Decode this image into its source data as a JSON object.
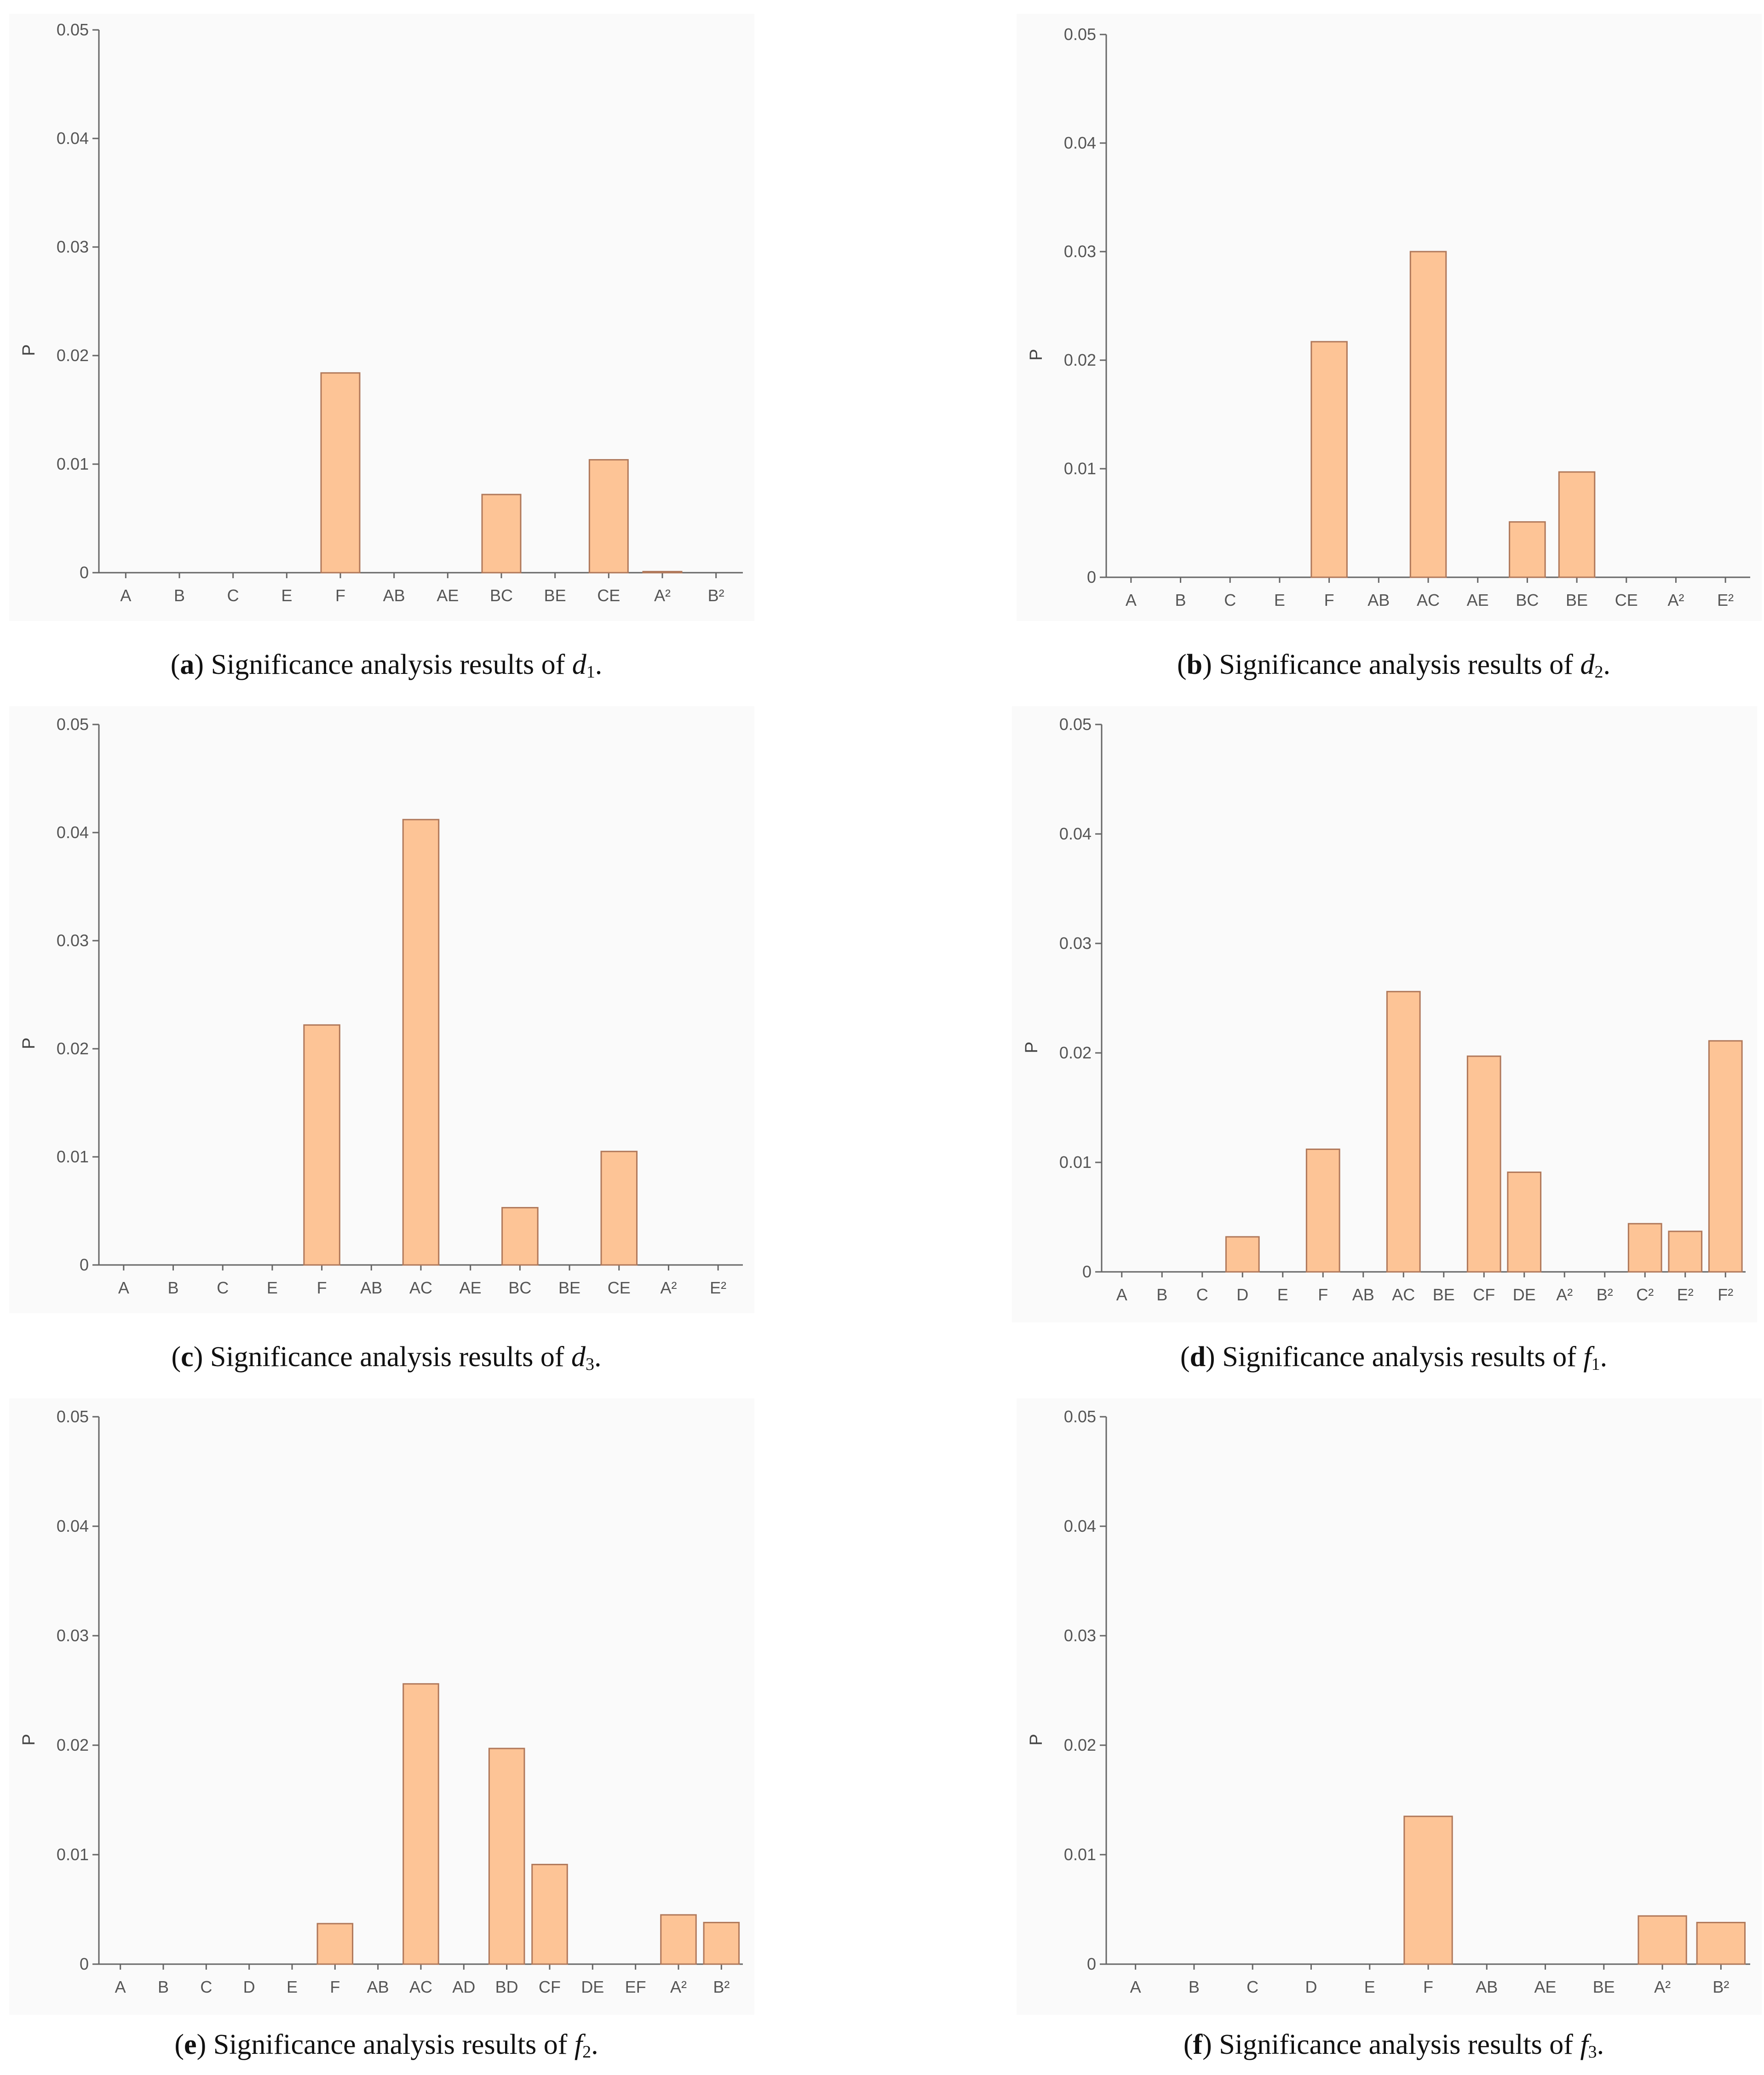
{
  "chart_data": [
    {
      "type": "bar",
      "panel": "a",
      "caption": {
        "letter": "a",
        "prefix": "Significance analysis results of ",
        "var": "d",
        "sub": "1",
        "suffix": "."
      },
      "ylabel": "P",
      "ylim": [
        0,
        0.05
      ],
      "yticks": [
        "0",
        "0.01",
        "0.02",
        "0.03",
        "0.04",
        "0.05"
      ],
      "categories": [
        "A",
        "B",
        "C",
        "E",
        "F",
        "AB",
        "AE",
        "BC",
        "BE",
        "CE",
        "A²",
        "B²"
      ],
      "values": [
        0,
        0,
        0,
        0,
        0.0184,
        0,
        0,
        0.0072,
        0,
        0.0104,
        0.0001,
        0
      ]
    },
    {
      "type": "bar",
      "panel": "b",
      "caption": {
        "letter": "b",
        "prefix": "Significance analysis results of ",
        "var": "d",
        "sub": "2",
        "suffix": "."
      },
      "ylabel": "P",
      "ylim": [
        0,
        0.05
      ],
      "yticks": [
        "0",
        "0.01",
        "0.02",
        "0.03",
        "0.04",
        "0.05"
      ],
      "categories": [
        "A",
        "B",
        "C",
        "E",
        "F",
        "AB",
        "AC",
        "AE",
        "BC",
        "BE",
        "CE",
        "A²",
        "E²"
      ],
      "values": [
        0,
        0,
        0,
        0,
        0.0217,
        0,
        0.03,
        0,
        0.0051,
        0.0097,
        0,
        0,
        0
      ]
    },
    {
      "type": "bar",
      "panel": "c",
      "caption": {
        "letter": "c",
        "prefix": "Significance analysis results of ",
        "var": "d",
        "sub": "3",
        "suffix": "."
      },
      "ylabel": "P",
      "ylim": [
        0,
        0.05
      ],
      "yticks": [
        "0",
        "0.01",
        "0.02",
        "0.03",
        "0.04",
        "0.05"
      ],
      "categories": [
        "A",
        "B",
        "C",
        "E",
        "F",
        "AB",
        "AC",
        "AE",
        "BC",
        "BE",
        "CE",
        "A²",
        "E²"
      ],
      "values": [
        0,
        0,
        0,
        0,
        0.0222,
        0,
        0.0412,
        0,
        0.0053,
        0,
        0.0105,
        0,
        0
      ]
    },
    {
      "type": "bar",
      "panel": "d",
      "caption": {
        "letter": "d",
        "prefix": "Significance analysis results of ",
        "var": "f",
        "sub": "1",
        "suffix": "."
      },
      "ylabel": "P",
      "ylim": [
        0,
        0.05
      ],
      "yticks": [
        "0",
        "0.01",
        "0.02",
        "0.03",
        "0.04",
        "0.05"
      ],
      "categories": [
        "A",
        "B",
        "C",
        "D",
        "E",
        "F",
        "AB",
        "AC",
        "BE",
        "CF",
        "DE",
        "A²",
        "B²",
        "C²",
        "E²",
        "F²"
      ],
      "values": [
        0,
        0,
        0,
        0.0032,
        0,
        0.0112,
        0,
        0.0256,
        0,
        0.0197,
        0.0091,
        0,
        0,
        0.0044,
        0.0037,
        0.0211
      ]
    },
    {
      "type": "bar",
      "panel": "e",
      "caption": {
        "letter": "e",
        "prefix": "Significance analysis results of ",
        "var": "f",
        "sub": "2",
        "suffix": "."
      },
      "ylabel": "P",
      "ylim": [
        0,
        0.05
      ],
      "yticks": [
        "0",
        "0.01",
        "0.02",
        "0.03",
        "0.04",
        "0.05"
      ],
      "categories": [
        "A",
        "B",
        "C",
        "D",
        "E",
        "F",
        "AB",
        "AC",
        "AD",
        "BD",
        "CF",
        "DE",
        "EF",
        "A²",
        "B²"
      ],
      "values": [
        0,
        0,
        0,
        0,
        0,
        0.0037,
        0,
        0.0256,
        0,
        0.0197,
        0.0091,
        0,
        0,
        0.0045,
        0.0038
      ]
    },
    {
      "type": "bar",
      "panel": "f",
      "caption": {
        "letter": "f",
        "prefix": "Significance analysis results of ",
        "var": "f",
        "sub": "3",
        "suffix": "."
      },
      "ylabel": "P",
      "ylim": [
        0,
        0.05
      ],
      "yticks": [
        "0",
        "0.01",
        "0.02",
        "0.03",
        "0.04",
        "0.05"
      ],
      "categories": [
        "A",
        "B",
        "C",
        "D",
        "E",
        "F",
        "AB",
        "AE",
        "BE",
        "A²",
        "B²"
      ],
      "values": [
        0,
        0,
        0,
        0,
        0,
        0.0135,
        0,
        0,
        0,
        0.0044,
        0.0038
      ]
    }
  ],
  "colors": {
    "bar_fill": "#fdc496",
    "bar_stroke": "#b0785a",
    "axis": "#666666",
    "panel_bg": "#fafafa"
  }
}
